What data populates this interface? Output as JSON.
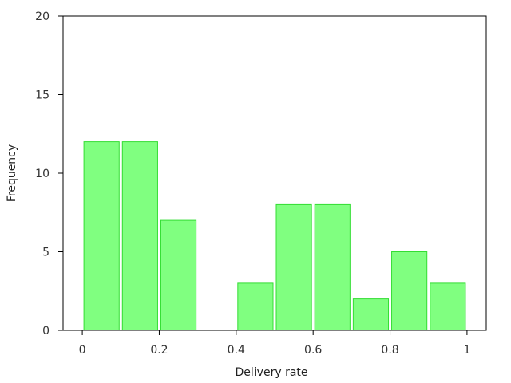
{
  "chart_data": {
    "type": "bar",
    "title": "",
    "xlabel": "Delivery rate",
    "ylabel": "Frequency",
    "bins": [
      {
        "x0": 0.0,
        "x1": 0.1,
        "value": 12
      },
      {
        "x0": 0.1,
        "x1": 0.2,
        "value": 12
      },
      {
        "x0": 0.2,
        "x1": 0.3,
        "value": 7
      },
      {
        "x0": 0.3,
        "x1": 0.4,
        "value": 0
      },
      {
        "x0": 0.4,
        "x1": 0.5,
        "value": 3
      },
      {
        "x0": 0.5,
        "x1": 0.6,
        "value": 8
      },
      {
        "x0": 0.6,
        "x1": 0.7,
        "value": 8
      },
      {
        "x0": 0.7,
        "x1": 0.8,
        "value": 2
      },
      {
        "x0": 0.8,
        "x1": 0.9,
        "value": 5
      },
      {
        "x0": 0.9,
        "x1": 1.0,
        "value": 3
      }
    ],
    "xlim": [
      -0.05,
      1.05
    ],
    "ylim": [
      0,
      20
    ],
    "xticks": [
      0,
      0.2,
      0.4,
      0.6,
      0.8,
      1
    ],
    "xtick_labels": [
      "0",
      "0.2",
      "0.4",
      "0.6",
      "0.8",
      "1"
    ],
    "yticks": [
      0,
      5,
      10,
      15,
      20
    ],
    "ytick_labels": [
      "0",
      "5",
      "10",
      "15",
      "20"
    ],
    "grid": false,
    "colors": {
      "bar_fill": "#80ff80",
      "bar_stroke": "#33dd33"
    }
  }
}
